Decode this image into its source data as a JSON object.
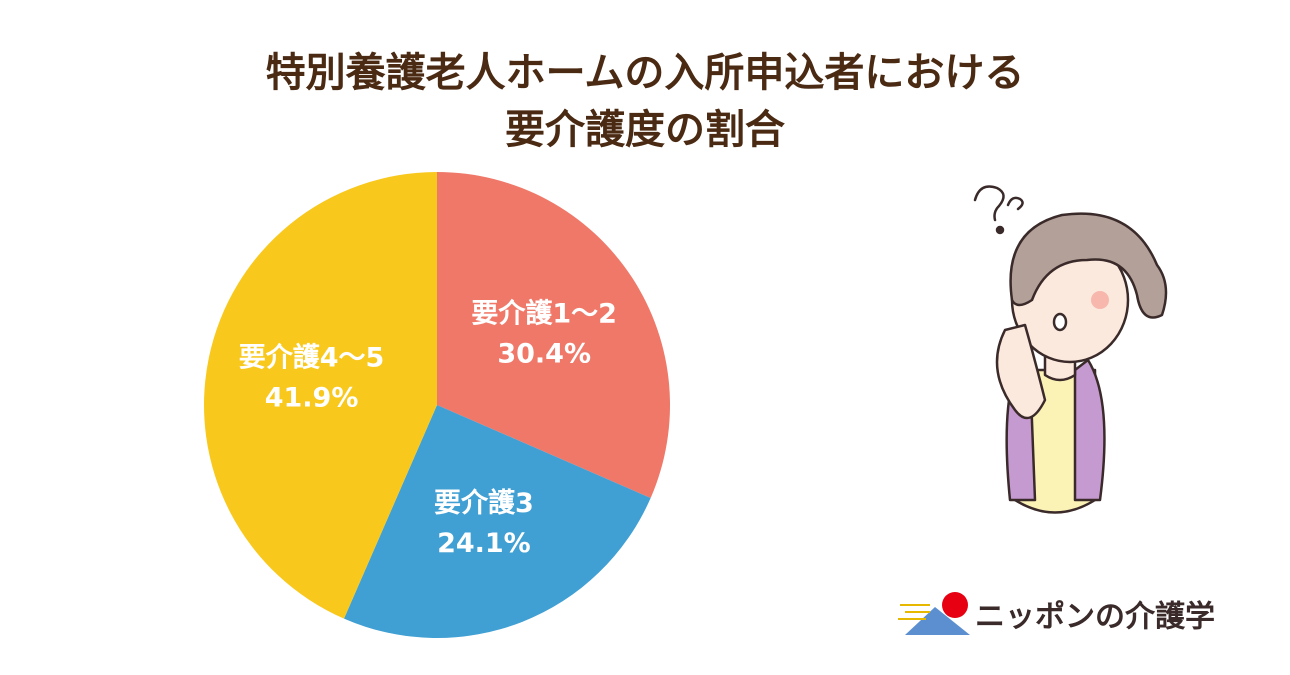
{
  "chart_data": {
    "type": "pie",
    "title": [
      "特別養護老人ホームの入所申込者における",
      "要介護度の割合"
    ],
    "categories": [
      "要介護1～2",
      "要介護3",
      "要介護4～5"
    ],
    "values": [
      30.4,
      24.1,
      41.9
    ],
    "value_labels": [
      "30.4%",
      "24.1%",
      "41.9%"
    ],
    "colors": [
      "#ef7869",
      "#409fd3",
      "#f8c81d"
    ]
  },
  "logo": "ニッポンの介護学"
}
